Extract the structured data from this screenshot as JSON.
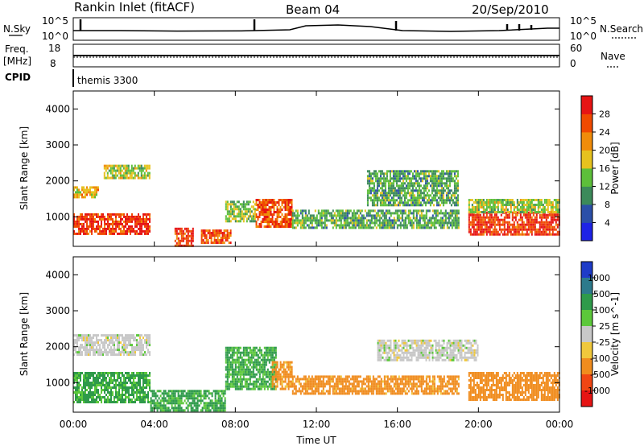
{
  "header": {
    "station": "Rankin Inlet (fitACF)",
    "beam": "Beam 04",
    "date": "20/Sep/2010"
  },
  "top_panels": {
    "nsky_label": "N.Sky",
    "nsearch_label": "N.Search",
    "nsky_ticks": [
      "10^5",
      "10^0"
    ],
    "nsearch_ticks": [
      "10^5",
      "10^0"
    ],
    "freq_label": "Freq.",
    "freq_unit": "[MHz]",
    "freq_ticks": [
      "18",
      "8"
    ],
    "nave_label": "Nave",
    "nave_ticks": [
      "60",
      "0"
    ],
    "cpid_label": "CPID",
    "cpid_value": "themis 3300"
  },
  "chart_data": [
    {
      "type": "heatmap",
      "title": "",
      "xlabel": "Time UT",
      "ylabel": "Slant Range [km]",
      "x_ticks": [
        "00:00",
        "04:00",
        "08:00",
        "12:00",
        "16:00",
        "20:00",
        "00:00"
      ],
      "x_range_hours": [
        0,
        24
      ],
      "y_ticks": [
        1000,
        2000,
        3000,
        4000
      ],
      "ylim": [
        180,
        4500
      ],
      "colorbar": {
        "label": "Power [dB]",
        "tick_labels": [
          "4",
          "8",
          "12",
          "16",
          "20",
          "24",
          "28"
        ],
        "colors": [
          "#1e23e6",
          "#2b4fa8",
          "#3c8a5a",
          "#5dbf3a",
          "#e6c21e",
          "#f08c0a",
          "#f04a00",
          "#e61414"
        ]
      },
      "features": [
        {
          "t_start": 0.0,
          "t_end": 3.8,
          "range_start": 500,
          "range_end": 1100,
          "value": 28
        },
        {
          "t_start": 0.0,
          "t_end": 1.2,
          "range_start": 1550,
          "range_end": 1850,
          "value": 20
        },
        {
          "t_start": 1.5,
          "t_end": 3.8,
          "range_start": 2100,
          "range_end": 2450,
          "value": 16
        },
        {
          "t_start": 5.0,
          "t_end": 5.9,
          "range_start": 200,
          "range_end": 700,
          "value": 28
        },
        {
          "t_start": 6.3,
          "t_end": 7.8,
          "range_start": 250,
          "range_end": 650,
          "value": 26
        },
        {
          "t_start": 9.0,
          "t_end": 10.8,
          "range_start": 700,
          "range_end": 1500,
          "value": 26
        },
        {
          "t_start": 7.5,
          "t_end": 9.0,
          "range_start": 850,
          "range_end": 1450,
          "value": 14
        },
        {
          "t_start": 10.8,
          "t_end": 19.0,
          "range_start": 700,
          "range_end": 1200,
          "value": 12
        },
        {
          "t_start": 14.5,
          "t_end": 19.0,
          "range_start": 1300,
          "range_end": 2300,
          "value": 12
        },
        {
          "t_start": 19.5,
          "t_end": 24.0,
          "range_start": 500,
          "range_end": 1150,
          "value": 28
        },
        {
          "t_start": 19.5,
          "t_end": 24.0,
          "range_start": 1150,
          "range_end": 1500,
          "value": 16
        }
      ]
    },
    {
      "type": "heatmap",
      "title": "",
      "xlabel": "Time UT",
      "ylabel": "Slant Range [km]",
      "x_ticks": [
        "00:00",
        "04:00",
        "08:00",
        "12:00",
        "16:00",
        "20:00",
        "00:00"
      ],
      "x_range_hours": [
        0,
        24
      ],
      "y_ticks": [
        1000,
        2000,
        3000,
        4000
      ],
      "ylim": [
        180,
        4500
      ],
      "colorbar": {
        "label": "Velocity [m s^-1]",
        "tick_labels": [
          "1000",
          "500",
          "100",
          "25",
          "-25",
          "-100",
          "-500",
          "-1000"
        ],
        "colors": [
          "#1e3cc8",
          "#2d7a8c",
          "#2e9a4a",
          "#5cc83a",
          "#c8c8c8",
          "#f0c83c",
          "#f08c1e",
          "#f04614",
          "#e61414"
        ]
      },
      "features": [
        {
          "t_start": 0.0,
          "t_end": 3.8,
          "range_start": 1750,
          "range_end": 2350,
          "value": 0
        },
        {
          "t_start": 0.0,
          "t_end": 3.8,
          "range_start": 450,
          "range_end": 1300,
          "value": 120
        },
        {
          "t_start": 3.8,
          "t_end": 7.5,
          "range_start": 200,
          "range_end": 800,
          "value": 120
        },
        {
          "t_start": 7.5,
          "t_end": 10.0,
          "range_start": 800,
          "range_end": 2000,
          "value": 110
        },
        {
          "t_start": 9.8,
          "t_end": 10.8,
          "range_start": 800,
          "range_end": 1600,
          "value": -150
        },
        {
          "t_start": 10.8,
          "t_end": 19.0,
          "range_start": 700,
          "range_end": 1200,
          "value": -150
        },
        {
          "t_start": 15.0,
          "t_end": 20.0,
          "range_start": 1600,
          "range_end": 2200,
          "value": 0
        },
        {
          "t_start": 19.5,
          "t_end": 24.0,
          "range_start": 500,
          "range_end": 1300,
          "value": -300
        }
      ]
    }
  ]
}
